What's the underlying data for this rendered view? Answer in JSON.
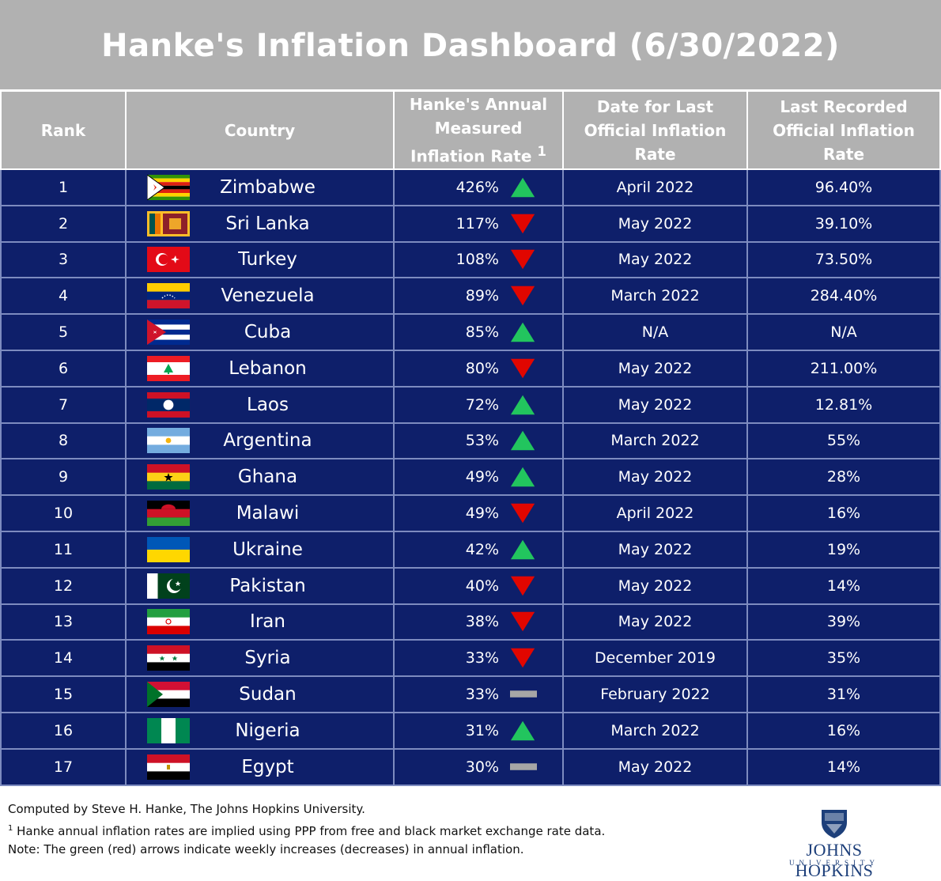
{
  "title": "Hanke's Inflation Dashboard (6/30/2022)",
  "chart_data": {
    "type": "table",
    "title": "Hanke's Inflation Dashboard (6/30/2022)",
    "columns": [
      "Rank",
      "Country",
      "Hanke's Annual Measured Inflation Rate",
      "Date for Last Official Inflation Rate",
      "Last Recorded Official Inflation Rate"
    ],
    "rate_footnote_mark": "1",
    "rows": [
      {
        "rank": "1",
        "country": "Zimbabwe",
        "hanke_rate": "426%",
        "trend": "up",
        "date": "April 2022",
        "official_rate": "96.40%",
        "flag": "zimbabwe-flag"
      },
      {
        "rank": "2",
        "country": "Sri Lanka",
        "hanke_rate": "117%",
        "trend": "down",
        "date": "May 2022",
        "official_rate": "39.10%",
        "flag": "sri-lanka-flag"
      },
      {
        "rank": "3",
        "country": "Turkey",
        "hanke_rate": "108%",
        "trend": "down",
        "date": "May 2022",
        "official_rate": "73.50%",
        "flag": "turkey-flag"
      },
      {
        "rank": "4",
        "country": "Venezuela",
        "hanke_rate": "89%",
        "trend": "down",
        "date": "March 2022",
        "official_rate": "284.40%",
        "flag": "venezuela-flag"
      },
      {
        "rank": "5",
        "country": "Cuba",
        "hanke_rate": "85%",
        "trend": "up",
        "date": "N/A",
        "official_rate": "N/A",
        "flag": "cuba-flag"
      },
      {
        "rank": "6",
        "country": "Lebanon",
        "hanke_rate": "80%",
        "trend": "down",
        "date": "May 2022",
        "official_rate": "211.00%",
        "flag": "lebanon-flag"
      },
      {
        "rank": "7",
        "country": "Laos",
        "hanke_rate": "72%",
        "trend": "up",
        "date": "May 2022",
        "official_rate": "12.81%",
        "flag": "laos-flag"
      },
      {
        "rank": "8",
        "country": "Argentina",
        "hanke_rate": "53%",
        "trend": "up",
        "date": "March 2022",
        "official_rate": "55%",
        "flag": "argentina-flag"
      },
      {
        "rank": "9",
        "country": "Ghana",
        "hanke_rate": "49%",
        "trend": "up",
        "date": "May 2022",
        "official_rate": "28%",
        "flag": "ghana-flag"
      },
      {
        "rank": "10",
        "country": "Malawi",
        "hanke_rate": "49%",
        "trend": "down",
        "date": "April 2022",
        "official_rate": "16%",
        "flag": "malawi-flag"
      },
      {
        "rank": "11",
        "country": "Ukraine",
        "hanke_rate": "42%",
        "trend": "up",
        "date": "May 2022",
        "official_rate": "19%",
        "flag": "ukraine-flag"
      },
      {
        "rank": "12",
        "country": "Pakistan",
        "hanke_rate": "40%",
        "trend": "down",
        "date": "May 2022",
        "official_rate": "14%",
        "flag": "pakistan-flag"
      },
      {
        "rank": "13",
        "country": "Iran",
        "hanke_rate": "38%",
        "trend": "down",
        "date": "May 2022",
        "official_rate": "39%",
        "flag": "iran-flag"
      },
      {
        "rank": "14",
        "country": "Syria",
        "hanke_rate": "33%",
        "trend": "down",
        "date": "December 2019",
        "official_rate": "35%",
        "flag": "syria-flag"
      },
      {
        "rank": "15",
        "country": "Sudan",
        "hanke_rate": "33%",
        "trend": "flat",
        "date": "February 2022",
        "official_rate": "31%",
        "flag": "sudan-flag"
      },
      {
        "rank": "16",
        "country": "Nigeria",
        "hanke_rate": "31%",
        "trend": "up",
        "date": "March 2022",
        "official_rate": "16%",
        "flag": "nigeria-flag"
      },
      {
        "rank": "17",
        "country": "Egypt",
        "hanke_rate": "30%",
        "trend": "flat",
        "date": "May 2022",
        "official_rate": "14%",
        "flag": "egypt-flag"
      }
    ]
  },
  "footer": {
    "line1": "Computed by Steve H. Hanke, The Johns Hopkins University.",
    "line2_mark": "1",
    "line2": " Hanke annual inflation rates are implied using PPP from free and black market exchange rate data.",
    "line3": "Note: The green (red) arrows indicate weekly increases (decreases) in annual inflation."
  },
  "logo": {
    "name": "JOHNS HOPKINS",
    "sub": "UNIVERSITY",
    "icon": "jhu-shield-icon"
  },
  "colors": {
    "header_bg": "#b1b1b1",
    "row_bg": "#0e1f6a",
    "grid": "#7d8bbf",
    "up": "#22c55e",
    "down": "#e10600",
    "flat": "#a6a6a6"
  }
}
